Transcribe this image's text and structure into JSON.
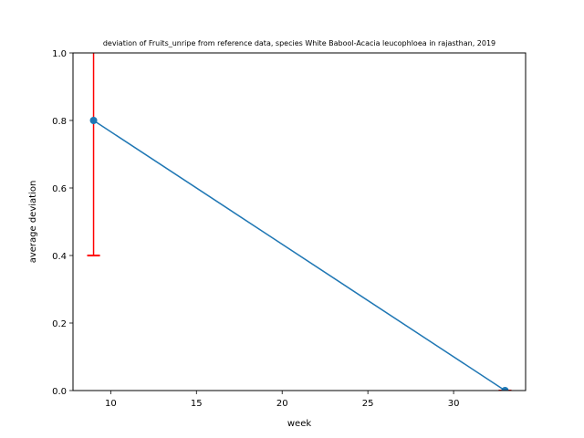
{
  "chart_data": {
    "type": "line",
    "title": "deviation of Fruits_unripe from reference data, species White Babool-Acacia leucophloea in rajasthan, 2019",
    "xlabel": "week",
    "ylabel": "average deviation",
    "xlim": [
      7.8,
      34.2
    ],
    "ylim": [
      0.0,
      1.0
    ],
    "xticks": [
      10,
      15,
      20,
      25,
      30
    ],
    "yticks": [
      0.0,
      0.2,
      0.4,
      0.6,
      0.8,
      1.0
    ],
    "grid": false,
    "series": [
      {
        "x": [
          9,
          33
        ],
        "y": [
          0.8,
          0.0
        ],
        "color": "#1f77b4",
        "error_bars": [
          {
            "x": 9,
            "lower": 0.4,
            "upper": 1.2
          },
          {
            "x": 33,
            "lower": 0.0,
            "upper": 0.0
          }
        ],
        "error_color": "#ff0000"
      }
    ]
  }
}
